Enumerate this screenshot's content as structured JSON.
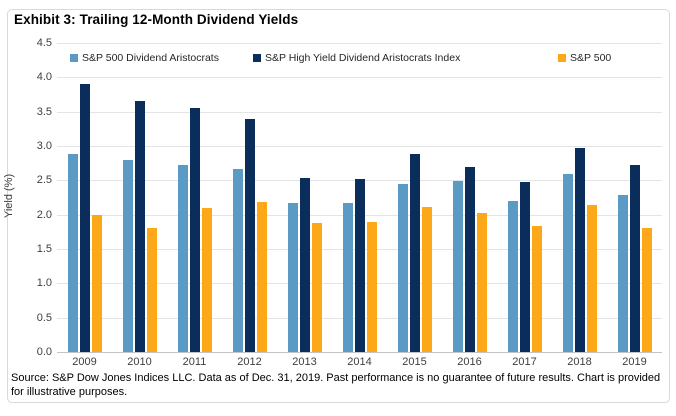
{
  "exhibit": {
    "title": "Exhibit 3: Trailing 12-Month Dividend Yields"
  },
  "source_note": "Source: S&P Dow Jones Indices LLC. Data as of Dec. 31, 2019. Past performance is no guarantee of future results. Chart is provided for illustrative purposes.",
  "chart_data": {
    "type": "bar",
    "title": "Exhibit 3: Trailing 12-Month Dividend Yields",
    "xlabel": "",
    "ylabel": "Yield (%)",
    "ylim": [
      0,
      4.5
    ],
    "ytick_step": 0.5,
    "yticks": [
      4.5,
      4.0,
      3.5,
      3.0,
      2.5,
      2.0,
      1.5,
      1.0,
      0.5,
      0.0
    ],
    "ytick_labels": [
      "4.5",
      "4.0",
      "3.5",
      "3.0",
      "2.5",
      "2.0",
      "1.5",
      "1.0",
      "0.5",
      "0.0"
    ],
    "grid": "horizontal",
    "legend_position": "top-inside",
    "categories": [
      "2009",
      "2010",
      "2011",
      "2012",
      "2013",
      "2014",
      "2015",
      "2016",
      "2017",
      "2018",
      "2019"
    ],
    "series": [
      {
        "name": "S&P 500 Dividend Aristocrats",
        "color": "#5A9AC4",
        "values": [
          2.88,
          2.8,
          2.72,
          2.67,
          2.17,
          2.17,
          2.45,
          2.49,
          2.2,
          2.59,
          2.29
        ]
      },
      {
        "name": "S&P High Yield Dividend Aristocrats Index",
        "color": "#0B2D5B",
        "values": [
          3.9,
          3.65,
          3.55,
          3.4,
          2.53,
          2.52,
          2.89,
          2.7,
          2.48,
          2.97,
          2.72
        ]
      },
      {
        "name": "S&P 500",
        "color": "#FDA818",
        "values": [
          2.0,
          1.81,
          2.1,
          2.18,
          1.88,
          1.9,
          2.11,
          2.03,
          1.83,
          2.14,
          1.8
        ]
      }
    ]
  },
  "colors": {
    "gridline": "#E4E4E4",
    "axis_line": "#C4C4C4",
    "tick_label": "#404040",
    "legend_text": "#262626",
    "frame_border": "#D9D9D9"
  }
}
